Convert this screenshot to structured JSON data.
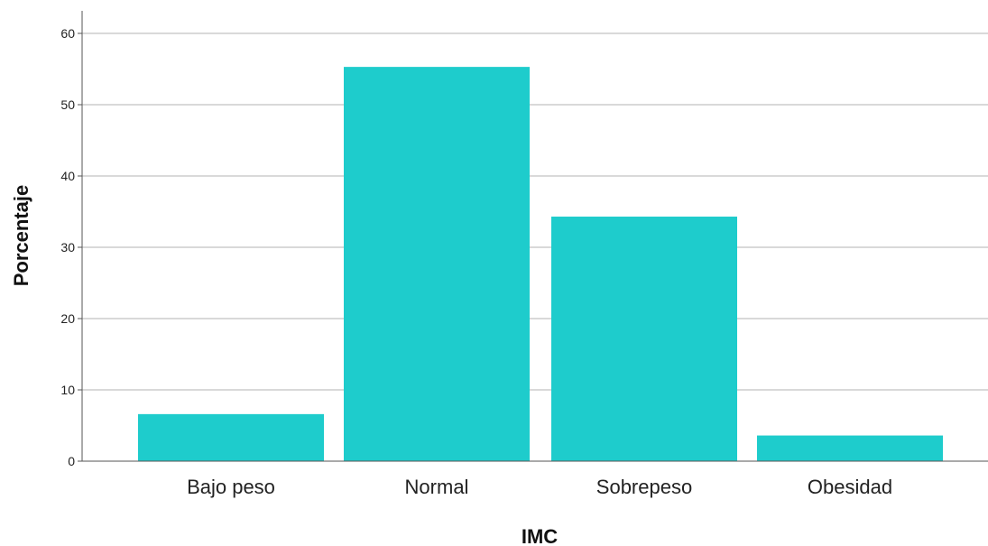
{
  "chart_data": {
    "type": "bar",
    "xlabel": "IMC",
    "ylabel": "Porcentaje",
    "categories": [
      "Bajo peso",
      "Normal",
      "Sobrepeso",
      "Obesidad"
    ],
    "values": [
      6.6,
      55.3,
      34.3,
      3.6
    ],
    "ylim": [
      0,
      63
    ],
    "yticks": [
      0,
      10,
      20,
      30,
      40,
      50,
      60
    ],
    "grid": true,
    "bar_color": "#1ecccc",
    "grid_color": "#b3b3b3",
    "axis_color": "#555555"
  }
}
